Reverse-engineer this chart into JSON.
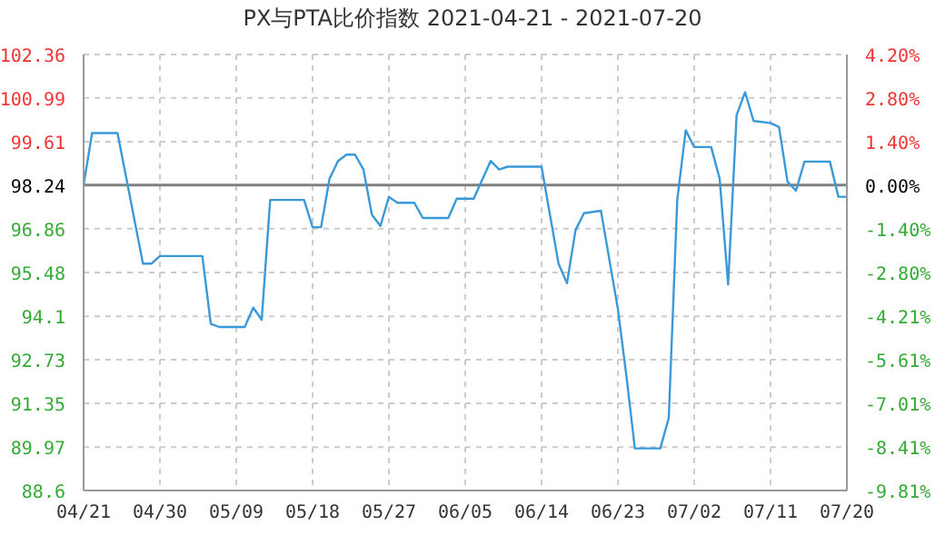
{
  "chart_data": {
    "type": "line",
    "title": "PX与PTA比价指数 2021-04-21 - 2021-07-20",
    "x": [
      "2021-04-21",
      "2021-04-22",
      "2021-04-25",
      "2021-04-28",
      "2021-04-29",
      "2021-04-30",
      "2021-05-05",
      "2021-05-06",
      "2021-05-07",
      "2021-05-10",
      "2021-05-11",
      "2021-05-12",
      "2021-05-13",
      "2021-05-17",
      "2021-05-18",
      "2021-05-19",
      "2021-05-20",
      "2021-05-21",
      "2021-05-22",
      "2021-05-23",
      "2021-05-24",
      "2021-05-25",
      "2021-05-26",
      "2021-05-27",
      "2021-05-28",
      "2021-05-30",
      "2021-05-31",
      "2021-06-03",
      "2021-06-04",
      "2021-06-06",
      "2021-06-08",
      "2021-06-09",
      "2021-06-10",
      "2021-06-14",
      "2021-06-16",
      "2021-06-17",
      "2021-06-18",
      "2021-06-19",
      "2021-06-21",
      "2021-06-23",
      "2021-06-24",
      "2021-06-25",
      "2021-06-28",
      "2021-06-29",
      "2021-06-30",
      "2021-07-01",
      "2021-07-02",
      "2021-07-04",
      "2021-07-05",
      "2021-07-06",
      "2021-07-07",
      "2021-07-08",
      "2021-07-09",
      "2021-07-11",
      "2021-07-12",
      "2021-07-13",
      "2021-07-14",
      "2021-07-15",
      "2021-07-18",
      "2021-07-19",
      "2021-07-20"
    ],
    "series": [
      {
        "color": "#3a9ad9",
        "values": [
          98.24,
          99.88,
          99.88,
          95.76,
          95.76,
          96.0,
          96.0,
          93.86,
          93.76,
          93.76,
          94.37,
          93.99,
          97.77,
          97.77,
          96.91,
          96.91,
          98.44,
          99.0,
          99.2,
          99.2,
          98.73,
          97.3,
          96.95,
          97.87,
          97.68,
          97.68,
          97.2,
          97.2,
          97.81,
          97.81,
          99.0,
          98.73,
          98.82,
          98.82,
          95.76,
          95.14,
          96.81,
          97.35,
          97.43,
          94.33,
          92.23,
          89.93,
          89.93,
          90.89,
          97.77,
          99.97,
          99.44,
          99.44,
          98.44,
          95.1,
          100.45,
          101.17,
          100.26,
          100.2,
          100.07,
          98.35,
          98.06,
          98.98,
          98.98,
          97.87,
          97.87
        ]
      }
    ],
    "xlim": [
      "2021-04-21",
      "2021-07-20"
    ],
    "xticks": [
      {
        "value": "2021-04-21",
        "label": "04/21"
      },
      {
        "value": "2021-04-30",
        "label": "04/30"
      },
      {
        "value": "2021-05-09",
        "label": "05/09"
      },
      {
        "value": "2021-05-18",
        "label": "05/18"
      },
      {
        "value": "2021-05-27",
        "label": "05/27"
      },
      {
        "value": "2021-06-05",
        "label": "06/05"
      },
      {
        "value": "2021-06-14",
        "label": "06/14"
      },
      {
        "value": "2021-06-23",
        "label": "06/23"
      },
      {
        "value": "2021-07-02",
        "label": "07/02"
      },
      {
        "value": "2021-07-11",
        "label": "07/11"
      },
      {
        "value": "2021-07-20",
        "label": "07/20"
      }
    ],
    "ylim": [
      88.6,
      102.36
    ],
    "yticks": [
      88.6,
      89.97,
      91.35,
      92.73,
      94.1,
      95.48,
      96.86,
      98.24,
      99.61,
      100.99,
      102.36
    ],
    "y2lim": [
      -9.81,
      4.2
    ],
    "y2ticks": [
      {
        "value": -9.81,
        "label": "-9.81%"
      },
      {
        "value": -8.41,
        "label": "-8.41%"
      },
      {
        "value": -7.01,
        "label": "-7.01%"
      },
      {
        "value": -5.61,
        "label": "-5.61%"
      },
      {
        "value": -4.21,
        "label": "-4.21%"
      },
      {
        "value": -2.8,
        "label": "-2.80%"
      },
      {
        "value": -1.4,
        "label": "-1.40%"
      },
      {
        "value": 0,
        "label": "0.00%"
      },
      {
        "value": 1.4,
        "label": "1.40%"
      },
      {
        "value": 2.8,
        "label": "2.80%"
      },
      {
        "value": 4.2,
        "label": "4.20%"
      }
    ],
    "ref_lines": [
      {
        "axis": "y",
        "value": 98.24,
        "color": "#808080"
      }
    ],
    "grid": true,
    "marker": "none",
    "line_style": "solid"
  }
}
